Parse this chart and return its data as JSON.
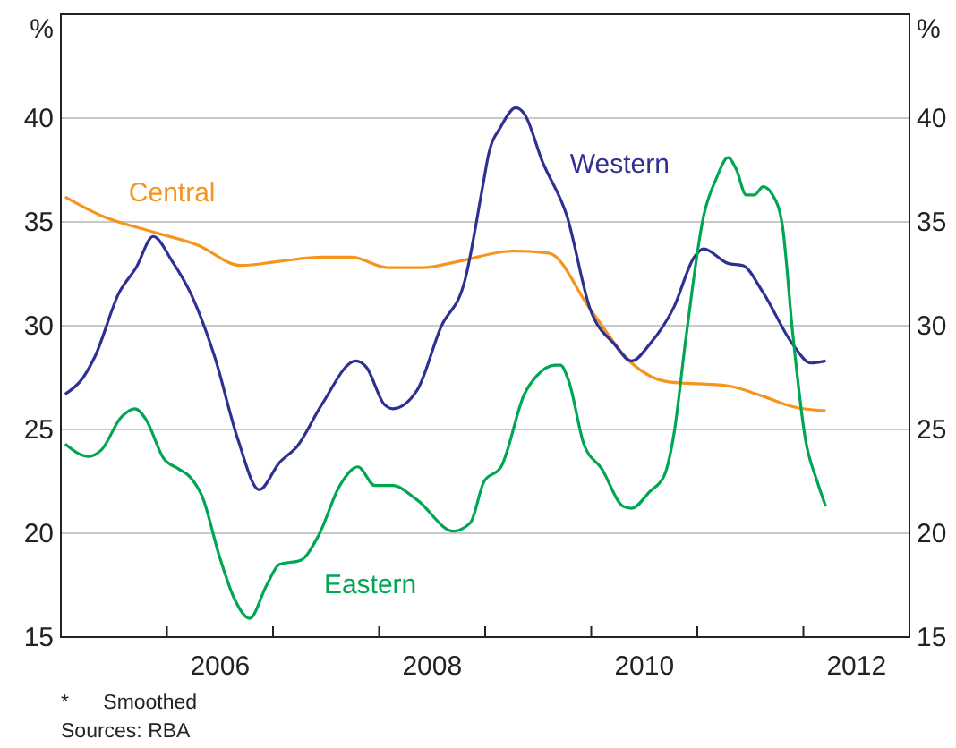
{
  "chart_data": {
    "type": "line",
    "ylabel": "%",
    "y2label": "%",
    "xlim": [
      2005,
      2013
    ],
    "xticks": [
      {
        "value": 2006,
        "label": null
      },
      {
        "value": 2006.5,
        "label": "2006"
      },
      {
        "value": 2007,
        "label": null
      },
      {
        "value": 2008,
        "label": null
      },
      {
        "value": 2008.5,
        "label": "2008"
      },
      {
        "value": 2009,
        "label": null
      },
      {
        "value": 2010,
        "label": null
      },
      {
        "value": 2010.5,
        "label": "2010"
      },
      {
        "value": 2011,
        "label": null
      },
      {
        "value": 2012,
        "label": null
      },
      {
        "value": 2012.5,
        "label": "2012"
      }
    ],
    "ylim": [
      15,
      45
    ],
    "yticks": [
      15,
      20,
      25,
      30,
      35,
      40
    ],
    "y2lim": [
      15,
      45
    ],
    "y2ticks": [
      15,
      20,
      25,
      30,
      35,
      40
    ],
    "grid": "y",
    "series": [
      {
        "name": "Central",
        "color": "#f7941d",
        "x": [
          2005.04,
          2005.38,
          2005.88,
          2006.28,
          2006.7,
          2007.06,
          2007.46,
          2007.74,
          2008.08,
          2008.41,
          2008.75,
          2009.26,
          2009.6,
          2009.99,
          2010.38,
          2010.72,
          2011.29,
          2011.62,
          2011.9,
          2012.21
        ],
        "values": [
          36.2,
          35.3,
          34.5,
          33.9,
          32.9,
          33.1,
          33.3,
          33.3,
          32.8,
          32.8,
          33.1,
          33.6,
          33.5,
          30.8,
          28.2,
          27.3,
          27.1,
          26.6,
          26.1,
          25.9
        ]
      },
      {
        "name": "Western",
        "color": "#2e3192",
        "x": [
          2005.04,
          2005.21,
          2005.32,
          2005.55,
          2005.71,
          2005.87,
          2006.05,
          2006.22,
          2006.45,
          2006.67,
          2006.87,
          2007.06,
          2007.23,
          2007.46,
          2007.78,
          2007.88,
          2008.05,
          2008.13,
          2008.36,
          2008.58,
          2008.81,
          2008.98,
          2009.03,
          2009.15,
          2009.29,
          2009.37,
          2009.54,
          2009.77,
          2009.99,
          2010.22,
          2010.38,
          2010.55,
          2010.78,
          2010.97,
          2011.06,
          2011.29,
          2011.43,
          2011.62,
          2011.9,
          2012.07,
          2012.21
        ],
        "values": [
          26.7,
          27.5,
          28.5,
          31.6,
          32.8,
          34.3,
          33.1,
          31.6,
          28.5,
          24.5,
          22.1,
          23.4,
          24.2,
          26.2,
          28.3,
          28.0,
          26.2,
          26.0,
          26.9,
          29.9,
          32.2,
          36.8,
          38.2,
          39.6,
          40.5,
          40.2,
          37.9,
          35.3,
          30.8,
          29.1,
          28.3,
          29.1,
          30.9,
          33.3,
          33.7,
          33.0,
          32.9,
          31.6,
          29.1,
          28.2,
          28.3
        ]
      },
      {
        "name": "Eastern",
        "color": "#00a651",
        "x": [
          2005.04,
          2005.26,
          2005.38,
          2005.57,
          2005.7,
          2005.8,
          2005.97,
          2006.11,
          2006.22,
          2006.33,
          2006.5,
          2006.64,
          2006.78,
          2006.94,
          2007.06,
          2007.26,
          2007.43,
          2007.63,
          2007.8,
          2007.96,
          2008.13,
          2008.36,
          2008.7,
          2008.86,
          2008.99,
          2009.15,
          2009.37,
          2009.49,
          2009.66,
          2009.71,
          2009.79,
          2009.93,
          2010.1,
          2010.3,
          2010.38,
          2010.55,
          2010.69,
          2010.78,
          2010.89,
          2011.06,
          2011.18,
          2011.29,
          2011.37,
          2011.46,
          2011.54,
          2011.62,
          2011.71,
          2011.8,
          2011.9,
          2012.02,
          2012.13,
          2012.21
        ],
        "values": [
          24.3,
          23.7,
          24.0,
          25.6,
          26.0,
          25.5,
          23.6,
          23.1,
          22.7,
          21.8,
          18.8,
          16.8,
          15.9,
          17.5,
          18.5,
          18.7,
          19.9,
          22.3,
          23.2,
          22.3,
          22.3,
          21.6,
          20.1,
          20.5,
          22.5,
          23.2,
          26.7,
          27.6,
          28.1,
          28.1,
          27.3,
          24.3,
          23.1,
          21.3,
          21.2,
          22.0,
          22.8,
          24.8,
          29.3,
          35.3,
          37.1,
          38.1,
          37.5,
          36.3,
          36.3,
          36.7,
          36.3,
          34.9,
          29.6,
          24.5,
          22.5,
          21.3
        ]
      }
    ],
    "annotations": [
      "*      Smoothed",
      "Sources: RBA"
    ]
  }
}
